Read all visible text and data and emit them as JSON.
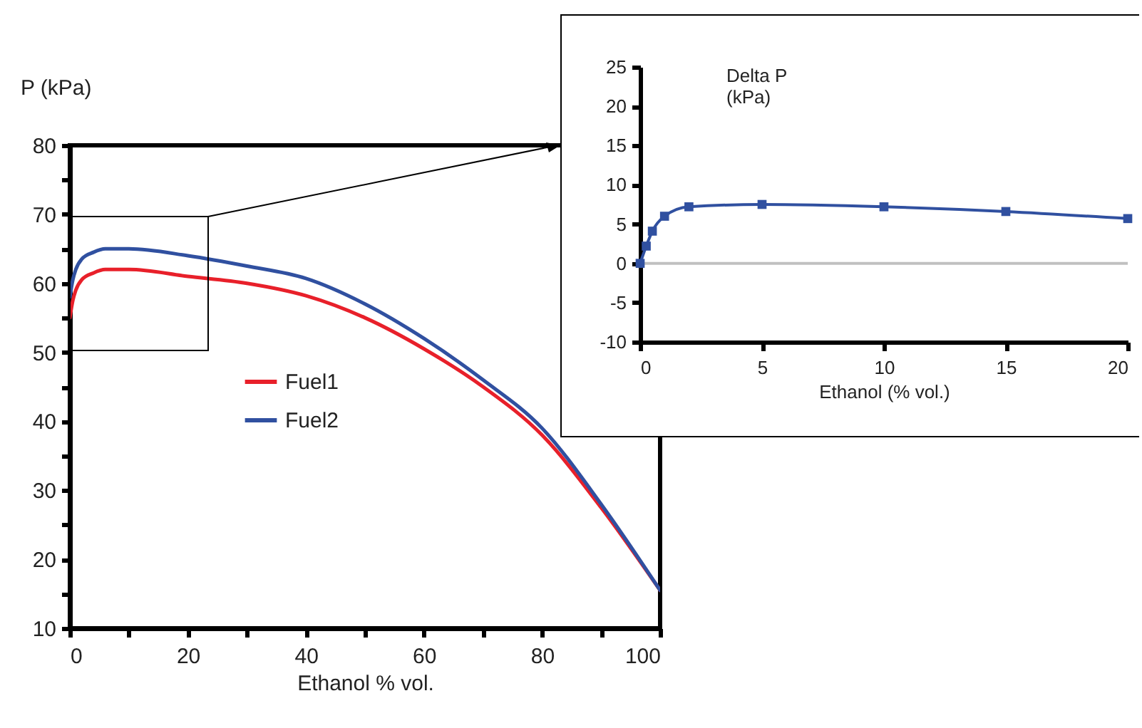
{
  "chart_data": [
    {
      "type": "line",
      "xlabel": "Ethanol % vol.",
      "ylabel": "P (kPa)",
      "x": [
        0,
        0.5,
        1,
        2,
        4,
        6,
        10,
        20,
        30,
        40,
        50,
        60,
        70,
        80,
        90,
        100
      ],
      "series": [
        {
          "name": "Fuel1",
          "color": "#e8202a",
          "values": [
            55,
            57.5,
            59,
            60.5,
            61.5,
            62,
            62,
            61,
            60,
            58.2,
            55,
            50.5,
            45,
            38,
            27.5,
            15.5
          ]
        },
        {
          "name": "Fuel2",
          "color": "#3050a0",
          "values": [
            58,
            60.5,
            62,
            63.5,
            64.5,
            65,
            65,
            64,
            62.5,
            60.7,
            57,
            52,
            46,
            39,
            28,
            15.5
          ]
        }
      ],
      "xlim": [
        0,
        100
      ],
      "xticks": [
        0,
        {
          "value": 10,
          "label": null
        },
        20,
        {
          "value": 30,
          "label": null
        },
        40,
        {
          "value": 50,
          "label": null
        },
        60,
        {
          "value": 70,
          "label": null
        },
        80,
        {
          "value": 90,
          "label": null
        },
        100
      ],
      "ylim": [
        10,
        80
      ],
      "yticks": [
        10,
        {
          "value": 15,
          "label": null
        },
        20,
        {
          "value": 25,
          "label": null
        },
        30,
        {
          "value": 35,
          "label": null
        },
        40,
        {
          "value": 45,
          "label": null
        },
        50,
        {
          "value": 55,
          "label": null
        },
        60,
        {
          "value": 65,
          "label": null
        },
        70,
        {
          "value": 75,
          "label": null
        },
        80
      ],
      "legend": "left"
    },
    {
      "type": "line",
      "xlabel": "Ethanol (% vol.)",
      "ylabel": "Delta P (kPa)",
      "x": [
        0,
        0.25,
        0.5,
        1,
        2,
        5,
        10,
        15,
        20
      ],
      "series": [
        {
          "color": "#3050a0",
          "values": [
            0,
            2.2,
            4.1,
            6,
            7.2,
            7.5,
            7.2,
            6.6,
            5.7
          ]
        }
      ],
      "marker": "square",
      "ref_lines": [
        {
          "axis": "y",
          "value": 0,
          "color": "#c0c0c0"
        }
      ],
      "xlim": [
        0,
        20
      ],
      "xticks": [
        0,
        5,
        10,
        15,
        20
      ],
      "ylim": [
        -10,
        25
      ],
      "yticks": [
        -10,
        -5,
        0,
        5,
        10,
        15,
        20,
        25
      ]
    }
  ]
}
